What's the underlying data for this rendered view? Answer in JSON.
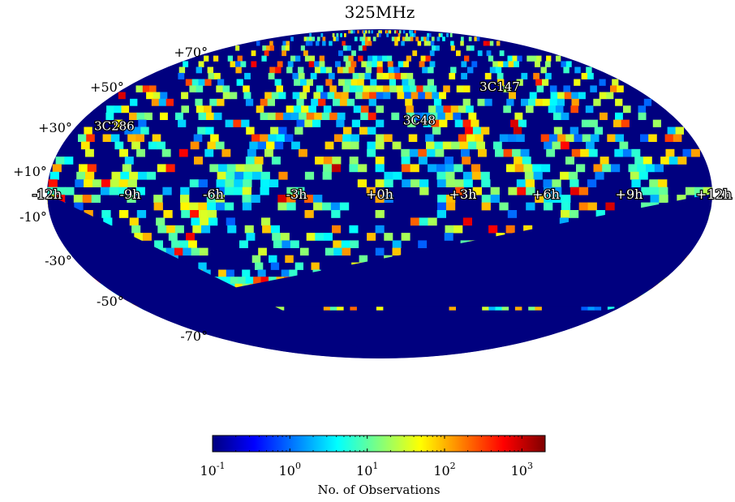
{
  "chart_data": {
    "type": "heatmap",
    "projection": "mollweide",
    "title": "325MHz",
    "ra_tick_labels": [
      "-12h",
      "-9h",
      "-6h",
      "-3h",
      "+0h",
      "+3h",
      "+6h",
      "+9h",
      "+12h"
    ],
    "ra_tick_values_h": [
      -12,
      -9,
      -6,
      -3,
      0,
      3,
      6,
      9,
      12
    ],
    "dec_tick_labels": [
      "+70°",
      "+50°",
      "+30°",
      "+10°",
      "-10°",
      "-30°",
      "-50°",
      "-70°"
    ],
    "dec_tick_values_deg": [
      70,
      50,
      30,
      10,
      -10,
      -30,
      -50,
      -70
    ],
    "source_labels": [
      {
        "name": "3C147",
        "ra_h": 5.7,
        "dec_deg": 49.9
      },
      {
        "name": "3C48",
        "ra_h": 1.6,
        "dec_deg": 33.2
      },
      {
        "name": "3C286",
        "ra_h": -10.5,
        "dec_deg": 30.5
      }
    ],
    "coverage_limit_dec_deg": -53,
    "background_color": "#00007f",
    "colorbar": {
      "label": "No. of Observations",
      "scale": "log",
      "range": [
        0.1,
        2000
      ],
      "tick_values": [
        0.1,
        1,
        10,
        100,
        1000
      ],
      "tick_base": "10",
      "tick_exponents": [
        "-1",
        "0",
        "1",
        "2",
        "3"
      ],
      "colormap": "jet",
      "colormap_stops": [
        "#00007f",
        "#0000ff",
        "#007fff",
        "#00ffff",
        "#7fff7f",
        "#ffff00",
        "#ff7f00",
        "#ff0000",
        "#7f0000"
      ]
    },
    "grid": false,
    "legend": "none"
  }
}
